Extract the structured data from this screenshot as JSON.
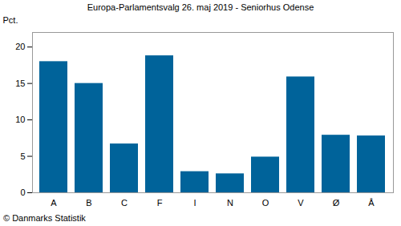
{
  "chart_data": {
    "type": "bar",
    "title": "Europa-Parlamentsvalg 26. maj 2019 - Seniorhus Odense",
    "y_label": "Pct.",
    "caption": "© Danmarks Statistik",
    "categories": [
      "A",
      "B",
      "C",
      "F",
      "I",
      "N",
      "O",
      "V",
      "Ø",
      "Å"
    ],
    "values": [
      18.0,
      15.0,
      6.7,
      18.8,
      2.9,
      2.6,
      4.9,
      15.9,
      7.9,
      7.8
    ],
    "color": "#00639a",
    "ylim": [
      0,
      22
    ],
    "yticks": [
      0,
      5,
      10,
      15,
      20
    ],
    "grid": false
  }
}
